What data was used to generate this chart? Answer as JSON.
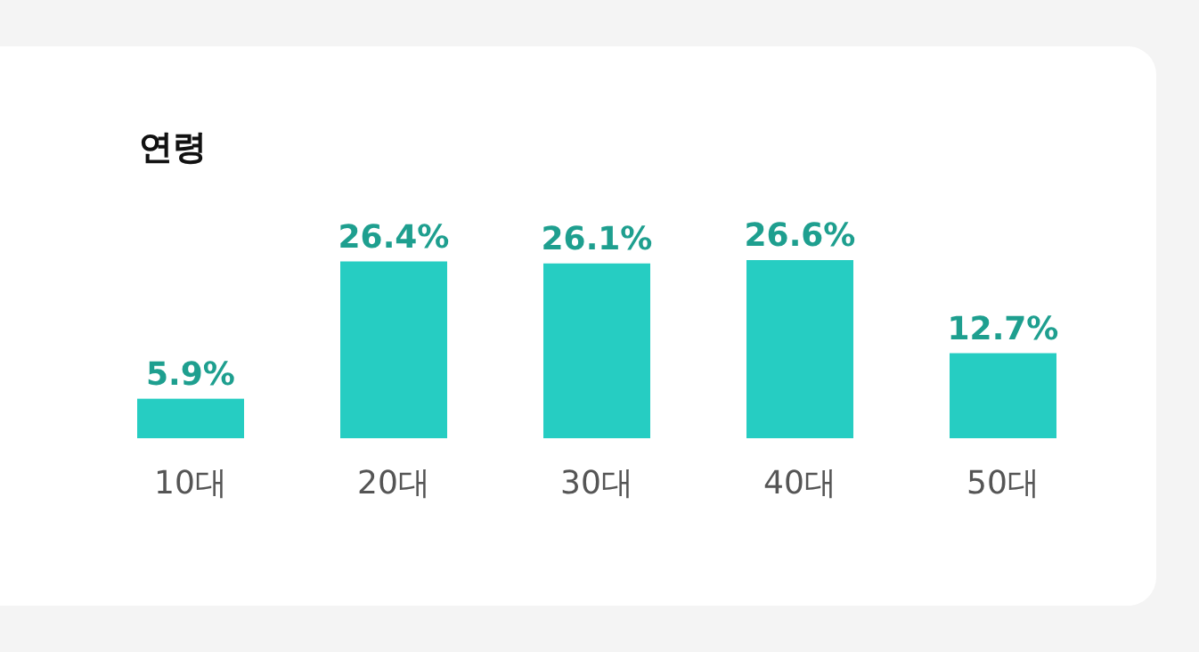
{
  "chart_data": {
    "type": "bar",
    "title": "연령",
    "categories": [
      "10대",
      "20대",
      "30대",
      "40대",
      "50대"
    ],
    "values": [
      5.9,
      26.4,
      26.1,
      26.6,
      12.7
    ],
    "color": "#26cdc2",
    "value_labels": [
      "5.9%",
      "26.4%",
      "26.1%",
      "26.6%",
      "12.7%"
    ]
  }
}
